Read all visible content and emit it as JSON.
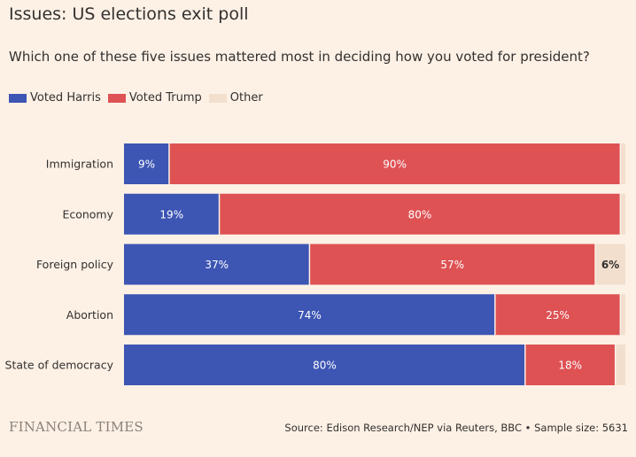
{
  "header": {
    "title": "Issues: US elections exit poll",
    "subtitle": "Which one of these five issues mattered most in deciding how you voted for president?"
  },
  "legend": [
    {
      "label": "Voted Harris",
      "color": "#3d55b3"
    },
    {
      "label": "Voted Trump",
      "color": "#de5254"
    },
    {
      "label": "Other",
      "color": "#f2dfce"
    }
  ],
  "chart_data": {
    "type": "bar",
    "orientation": "horizontal",
    "stacked": true,
    "title": "Issues: US elections exit poll",
    "subtitle": "Which one of these five issues mattered most in deciding how you voted for president?",
    "categories": [
      "Immigration",
      "Economy",
      "Foreign policy",
      "Abortion",
      "State of democracy"
    ],
    "series": [
      {
        "name": "Voted Harris",
        "color": "#3d55b3",
        "values": [
          9,
          19,
          37,
          74,
          80
        ]
      },
      {
        "name": "Voted Trump",
        "color": "#de5254",
        "values": [
          90,
          80,
          57,
          25,
          18
        ]
      },
      {
        "name": "Other",
        "color": "#f2dfce",
        "values": [
          1,
          1,
          6,
          1,
          2
        ]
      }
    ],
    "data_labels": [
      [
        "9%",
        "90%",
        ""
      ],
      [
        "19%",
        "80%",
        ""
      ],
      [
        "37%",
        "57%",
        "6%"
      ],
      [
        "74%",
        "25%",
        ""
      ],
      [
        "80%",
        "18%",
        ""
      ]
    ],
    "xlim": [
      0,
      100
    ],
    "grid": false,
    "legend_position": "top-left"
  },
  "footer": {
    "brand": "FINANCIAL TIMES",
    "source": "Source: Edison Research/NEP via Reuters, BBC • Sample size: 5631"
  }
}
